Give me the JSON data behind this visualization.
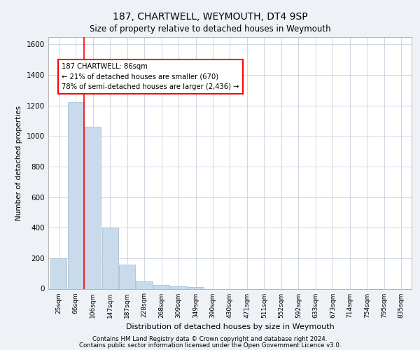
{
  "title1": "187, CHARTWELL, WEYMOUTH, DT4 9SP",
  "title2": "Size of property relative to detached houses in Weymouth",
  "xlabel": "Distribution of detached houses by size in Weymouth",
  "ylabel": "Number of detached properties",
  "bar_labels": [
    "25sqm",
    "66sqm",
    "106sqm",
    "147sqm",
    "187sqm",
    "228sqm",
    "268sqm",
    "309sqm",
    "349sqm",
    "390sqm",
    "430sqm",
    "471sqm",
    "511sqm",
    "552sqm",
    "592sqm",
    "633sqm",
    "673sqm",
    "714sqm",
    "754sqm",
    "795sqm",
    "835sqm"
  ],
  "bar_values": [
    200,
    1220,
    1060,
    400,
    160,
    50,
    25,
    15,
    10,
    0,
    0,
    0,
    0,
    0,
    0,
    0,
    0,
    0,
    0,
    0,
    0
  ],
  "bar_color": "#c9daea",
  "bar_edgecolor": "#a8c0d6",
  "annotation_title": "187 CHARTWELL: 86sqm",
  "annotation_line1": "← 21% of detached houses are smaller (670)",
  "annotation_line2": "78% of semi-detached houses are larger (2,436) →",
  "annotation_box_color": "white",
  "annotation_box_edgecolor": "red",
  "vline_color": "red",
  "vline_x": 1.48,
  "ylim": [
    0,
    1650
  ],
  "yticks": [
    0,
    200,
    400,
    600,
    800,
    1000,
    1200,
    1400,
    1600
  ],
  "footer1": "Contains HM Land Registry data © Crown copyright and database right 2024.",
  "footer2": "Contains public sector information licensed under the Open Government Licence v3.0.",
  "background_color": "#eef2f7",
  "plot_bg_color": "white",
  "grid_color": "#c8d0dc"
}
